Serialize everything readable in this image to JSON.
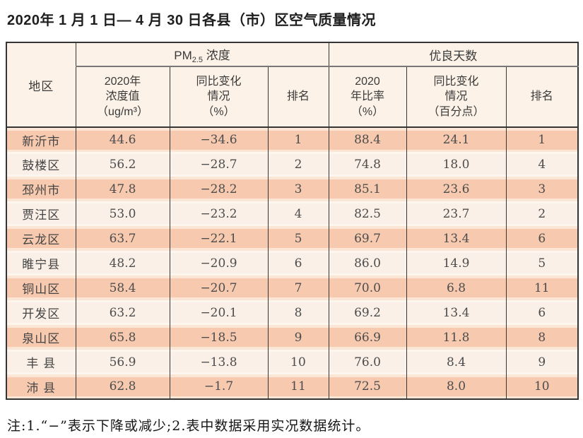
{
  "page": {
    "title": "2020年 1 月 1 日— 4 月 30 日各县（市）区空气质量情况",
    "note": "注:1.“−”表示下降或减少;2.表中数据采用实况数据统计。"
  },
  "table": {
    "header": {
      "region": "地区",
      "pm_group": {
        "prefix": "PM",
        "sub": "2.5",
        "suffix": " 浓度"
      },
      "good_group": "优良天数",
      "sub_headers": [
        "2020年\n浓度值\n（ug/m³）",
        "同比变化\n情况\n（%）",
        "排名",
        "2020\n年比率\n（%）",
        "同比变化\n情况\n（百分点）",
        "排名"
      ]
    },
    "columns_semantic": [
      "region",
      "pm25-2020-value-ug-m3",
      "pm25-yoy-change-percent",
      "pm25-rank",
      "good-days-2020-rate-percent",
      "good-days-yoy-change-points",
      "good-days-rank"
    ],
    "rows": [
      [
        "新沂市",
        "44.6",
        "−34.6",
        "1",
        "88.4",
        "24.1",
        "1"
      ],
      [
        "鼓楼区",
        "56.2",
        "−28.7",
        "2",
        "74.8",
        "18.0",
        "4"
      ],
      [
        "邳州市",
        "47.8",
        "−28.2",
        "3",
        "85.1",
        "23.6",
        "3"
      ],
      [
        "贾汪区",
        "53.0",
        "−23.2",
        "4",
        "82.5",
        "23.7",
        "2"
      ],
      [
        "云龙区",
        "63.7",
        "−22.1",
        "5",
        "69.7",
        "13.4",
        "6"
      ],
      [
        "睢宁县",
        "48.2",
        "−20.9",
        "6",
        "86.0",
        "14.9",
        "5"
      ],
      [
        "铜山区",
        "58.4",
        "−20.7",
        "7",
        "70.0",
        "6.8",
        "11"
      ],
      [
        "开发区",
        "63.2",
        "−20.1",
        "8",
        "69.2",
        "13.4",
        "6"
      ],
      [
        "泉山区",
        "65.8",
        "−18.5",
        "9",
        "66.9",
        "11.8",
        "8"
      ],
      [
        "丰 县",
        "56.9",
        "−13.8",
        "10",
        "76.0",
        "8.4",
        "9"
      ],
      [
        "沛 县",
        "62.8",
        "−1.7",
        "11",
        "72.5",
        "8.0",
        "10"
      ]
    ]
  },
  "colors": {
    "row_odd": "#f7cab0",
    "row_even": "#fbf0e7",
    "header_bg": "#fcf2e7",
    "border": "#353535"
  }
}
